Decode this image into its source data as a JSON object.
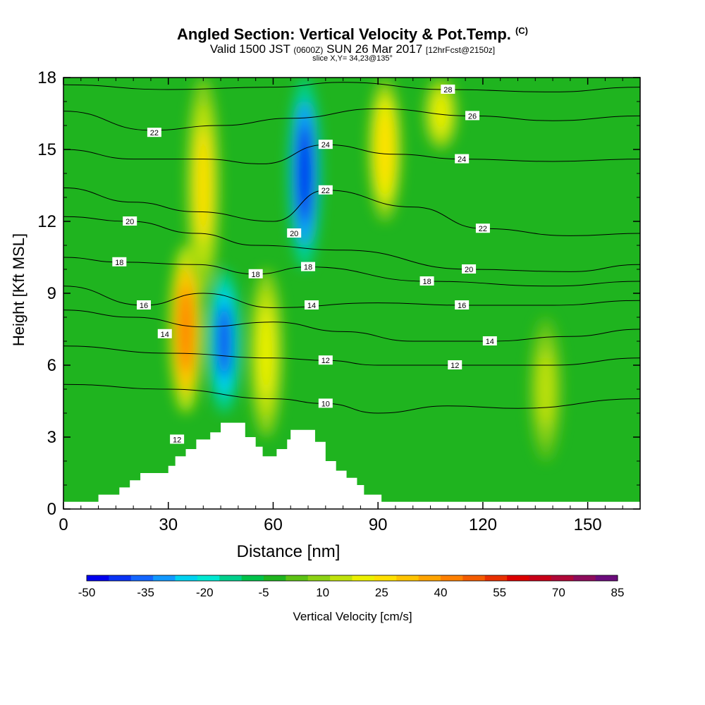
{
  "header": {
    "title": "Angled Section: Vertical Velocity & Pot.Temp.",
    "title_mark": "(C)",
    "valid_prefix": "Valid 1500 JST",
    "valid_utc": "(0600Z)",
    "valid_date": "SUN 26 Mar 2017",
    "forecast_info": "[12hrFcst@2150z]",
    "slice_info": "slice X,Y= 34,23@135°"
  },
  "colors": {
    "background": "#ffffff",
    "contour": "#000000",
    "terrain": "#ffffff",
    "palette": [
      "#0000ee",
      "#0a33f4",
      "#1466ff",
      "#1299ff",
      "#00d2f0",
      "#00e8d2",
      "#00d08c",
      "#00c24a",
      "#1fb41f",
      "#5cc214",
      "#8cd214",
      "#c0e20c",
      "#ecf000",
      "#ffe000",
      "#ffc400",
      "#ffa400",
      "#ff8000",
      "#f45c00",
      "#e83000",
      "#dc0000",
      "#c80018",
      "#b00838",
      "#8e0c5c",
      "#6c0c7c"
    ]
  },
  "chart_data": {
    "type": "heatmap",
    "title": "Angled Section: Vertical Velocity & Pot.Temp.",
    "xlabel": "Distance [nm]",
    "ylabel": "Height [Kft MSL]",
    "xlim": [
      0,
      165
    ],
    "ylim": [
      0,
      18
    ],
    "x_ticks": [
      0,
      30,
      60,
      90,
      120,
      150
    ],
    "y_ticks": [
      0,
      3,
      6,
      9,
      12,
      15,
      18
    ],
    "colorbar": {
      "label": "Vertical Velocity [cm/s]",
      "ticks": [
        -50,
        -35,
        -20,
        -5,
        10,
        25,
        40,
        55,
        70,
        85
      ],
      "min": -50,
      "max": 85
    },
    "vertical_velocity_features": [
      {
        "kind": "updraft",
        "x": 35,
        "ymin": 4,
        "ymax": 11,
        "peak": 45
      },
      {
        "kind": "updraft",
        "x": 40,
        "ymin": 9,
        "ymax": 18,
        "peak": 25
      },
      {
        "kind": "downdraft",
        "x": 46,
        "ymin": 4,
        "ymax": 10,
        "peak": -40
      },
      {
        "kind": "downdraft",
        "x": 69,
        "ymin": 10,
        "ymax": 18,
        "peak": -45
      },
      {
        "kind": "updraft",
        "x": 58,
        "ymin": 3,
        "ymax": 10,
        "peak": 22
      },
      {
        "kind": "updraft",
        "x": 92,
        "ymin": 12,
        "ymax": 18,
        "peak": 28
      },
      {
        "kind": "updraft",
        "x": 108,
        "ymin": 15,
        "ymax": 18,
        "peak": 22
      },
      {
        "kind": "updraft",
        "x": 138,
        "ymin": 2,
        "ymax": 8,
        "peak": 14
      }
    ],
    "theta_contours": [
      {
        "label": "10",
        "points": [
          [
            0,
            5.2
          ],
          [
            30,
            5.0
          ],
          [
            60,
            4.6
          ],
          [
            75,
            4.4
          ],
          [
            90,
            4.0
          ],
          [
            110,
            4.3
          ],
          [
            130,
            4.2
          ],
          [
            165,
            4.6
          ]
        ],
        "label_at": [
          75,
          4.4
        ]
      },
      {
        "label": "12",
        "points": [
          [
            0,
            6.8
          ],
          [
            30,
            6.5
          ],
          [
            60,
            6.3
          ],
          [
            75,
            6.2
          ],
          [
            90,
            6.0
          ],
          [
            112,
            6.0
          ],
          [
            140,
            6.0
          ],
          [
            165,
            6.3
          ]
        ],
        "label_at": [
          112,
          6.0
        ]
      },
      {
        "label": "14",
        "points": [
          [
            0,
            8.3
          ],
          [
            20,
            8.0
          ],
          [
            40,
            7.6
          ],
          [
            60,
            7.8
          ],
          [
            80,
            7.4
          ],
          [
            100,
            7.0
          ],
          [
            122,
            7.0
          ],
          [
            145,
            7.2
          ],
          [
            165,
            7.5
          ]
        ],
        "label_at": [
          122,
          7.0
        ]
      },
      {
        "label": "16",
        "points": [
          [
            0,
            9.3
          ],
          [
            23,
            8.5
          ],
          [
            40,
            9.0
          ],
          [
            60,
            8.4
          ],
          [
            90,
            8.6
          ],
          [
            114,
            8.5
          ],
          [
            140,
            8.5
          ],
          [
            165,
            8.7
          ]
        ],
        "label_at": [
          114,
          8.5
        ]
      },
      {
        "label": "18",
        "points": [
          [
            0,
            10.5
          ],
          [
            16,
            10.3
          ],
          [
            38,
            10.2
          ],
          [
            55,
            9.8
          ],
          [
            70,
            10.1
          ],
          [
            104,
            9.5
          ],
          [
            140,
            9.3
          ],
          [
            165,
            9.5
          ]
        ],
        "label_at": [
          104,
          9.5
        ]
      },
      {
        "label": "20",
        "points": [
          [
            0,
            12.2
          ],
          [
            19,
            12.0
          ],
          [
            38,
            11.5
          ],
          [
            55,
            11.0
          ],
          [
            80,
            10.8
          ],
          [
            116,
            10.0
          ],
          [
            145,
            9.9
          ],
          [
            165,
            10.2
          ]
        ],
        "label_at": [
          116,
          10.0
        ]
      },
      {
        "label": "22",
        "points": [
          [
            0,
            13.4
          ],
          [
            20,
            12.8
          ],
          [
            38,
            12.4
          ],
          [
            60,
            12.0
          ],
          [
            75,
            13.3
          ],
          [
            100,
            12.6
          ],
          [
            120,
            11.7
          ],
          [
            145,
            11.4
          ],
          [
            165,
            11.5
          ]
        ],
        "label_at": [
          120,
          11.7
        ]
      },
      {
        "label": "24",
        "points": [
          [
            0,
            15.0
          ],
          [
            20,
            14.6
          ],
          [
            40,
            14.6
          ],
          [
            57,
            14.4
          ],
          [
            75,
            15.2
          ],
          [
            95,
            14.8
          ],
          [
            114,
            14.6
          ],
          [
            140,
            14.5
          ],
          [
            165,
            14.6
          ]
        ],
        "label_at": [
          114,
          14.6
        ]
      },
      {
        "label": "26",
        "points": [
          [
            0,
            16.6
          ],
          [
            25,
            15.8
          ],
          [
            45,
            16.0
          ],
          [
            65,
            16.3
          ],
          [
            90,
            16.7
          ],
          [
            117,
            16.4
          ],
          [
            140,
            16.2
          ],
          [
            165,
            16.4
          ]
        ],
        "label_at": [
          117,
          16.4
        ]
      },
      {
        "label": "28",
        "points": [
          [
            0,
            17.7
          ],
          [
            30,
            17.5
          ],
          [
            60,
            17.6
          ],
          [
            80,
            17.8
          ],
          [
            110,
            17.5
          ],
          [
            140,
            17.4
          ],
          [
            165,
            17.6
          ]
        ],
        "label_at": [
          110,
          17.5
        ]
      }
    ],
    "extra_contour_labels": [
      {
        "label": "22",
        "x": 26,
        "y": 15.7
      },
      {
        "label": "20",
        "x": 19,
        "y": 12.0
      },
      {
        "label": "18",
        "x": 16,
        "y": 10.3
      },
      {
        "label": "16",
        "x": 23,
        "y": 8.5
      },
      {
        "label": "14",
        "x": 29,
        "y": 7.3
      },
      {
        "label": "12",
        "x": 32.5,
        "y": 2.9
      },
      {
        "label": "24",
        "x": 75,
        "y": 15.2
      },
      {
        "label": "22",
        "x": 75,
        "y": 13.3
      },
      {
        "label": "20",
        "x": 66,
        "y": 11.5
      },
      {
        "label": "18",
        "x": 70,
        "y": 10.1
      },
      {
        "label": "18",
        "x": 55,
        "y": 9.8
      },
      {
        "label": "14",
        "x": 71,
        "y": 8.5
      },
      {
        "label": "12",
        "x": 75,
        "y": 6.2
      }
    ],
    "terrain": [
      [
        0,
        0.3
      ],
      [
        10,
        0.3
      ],
      [
        10,
        0.6
      ],
      [
        16,
        0.6
      ],
      [
        16,
        0.9
      ],
      [
        19,
        0.9
      ],
      [
        19,
        1.2
      ],
      [
        22,
        1.2
      ],
      [
        22,
        1.5
      ],
      [
        30,
        1.5
      ],
      [
        30,
        1.8
      ],
      [
        32,
        1.8
      ],
      [
        32,
        2.2
      ],
      [
        35,
        2.2
      ],
      [
        35,
        2.5
      ],
      [
        38,
        2.5
      ],
      [
        38,
        2.9
      ],
      [
        42,
        2.9
      ],
      [
        42,
        3.2
      ],
      [
        45,
        3.2
      ],
      [
        45,
        3.6
      ],
      [
        52,
        3.6
      ],
      [
        52,
        3.0
      ],
      [
        55,
        3.0
      ],
      [
        55,
        2.6
      ],
      [
        57,
        2.6
      ],
      [
        57,
        2.2
      ],
      [
        61,
        2.2
      ],
      [
        61,
        2.5
      ],
      [
        64,
        2.5
      ],
      [
        64,
        2.9
      ],
      [
        65,
        2.9
      ],
      [
        65,
        3.3
      ],
      [
        72,
        3.3
      ],
      [
        72,
        2.8
      ],
      [
        75,
        2.8
      ],
      [
        75,
        2.0
      ],
      [
        78,
        2.0
      ],
      [
        78,
        1.6
      ],
      [
        81,
        1.6
      ],
      [
        81,
        1.3
      ],
      [
        84,
        1.3
      ],
      [
        84,
        1.0
      ],
      [
        86,
        1.0
      ],
      [
        86,
        0.6
      ],
      [
        91,
        0.6
      ],
      [
        91,
        0.3
      ],
      [
        165,
        0.3
      ],
      [
        165,
        0
      ],
      [
        0,
        0
      ]
    ]
  }
}
